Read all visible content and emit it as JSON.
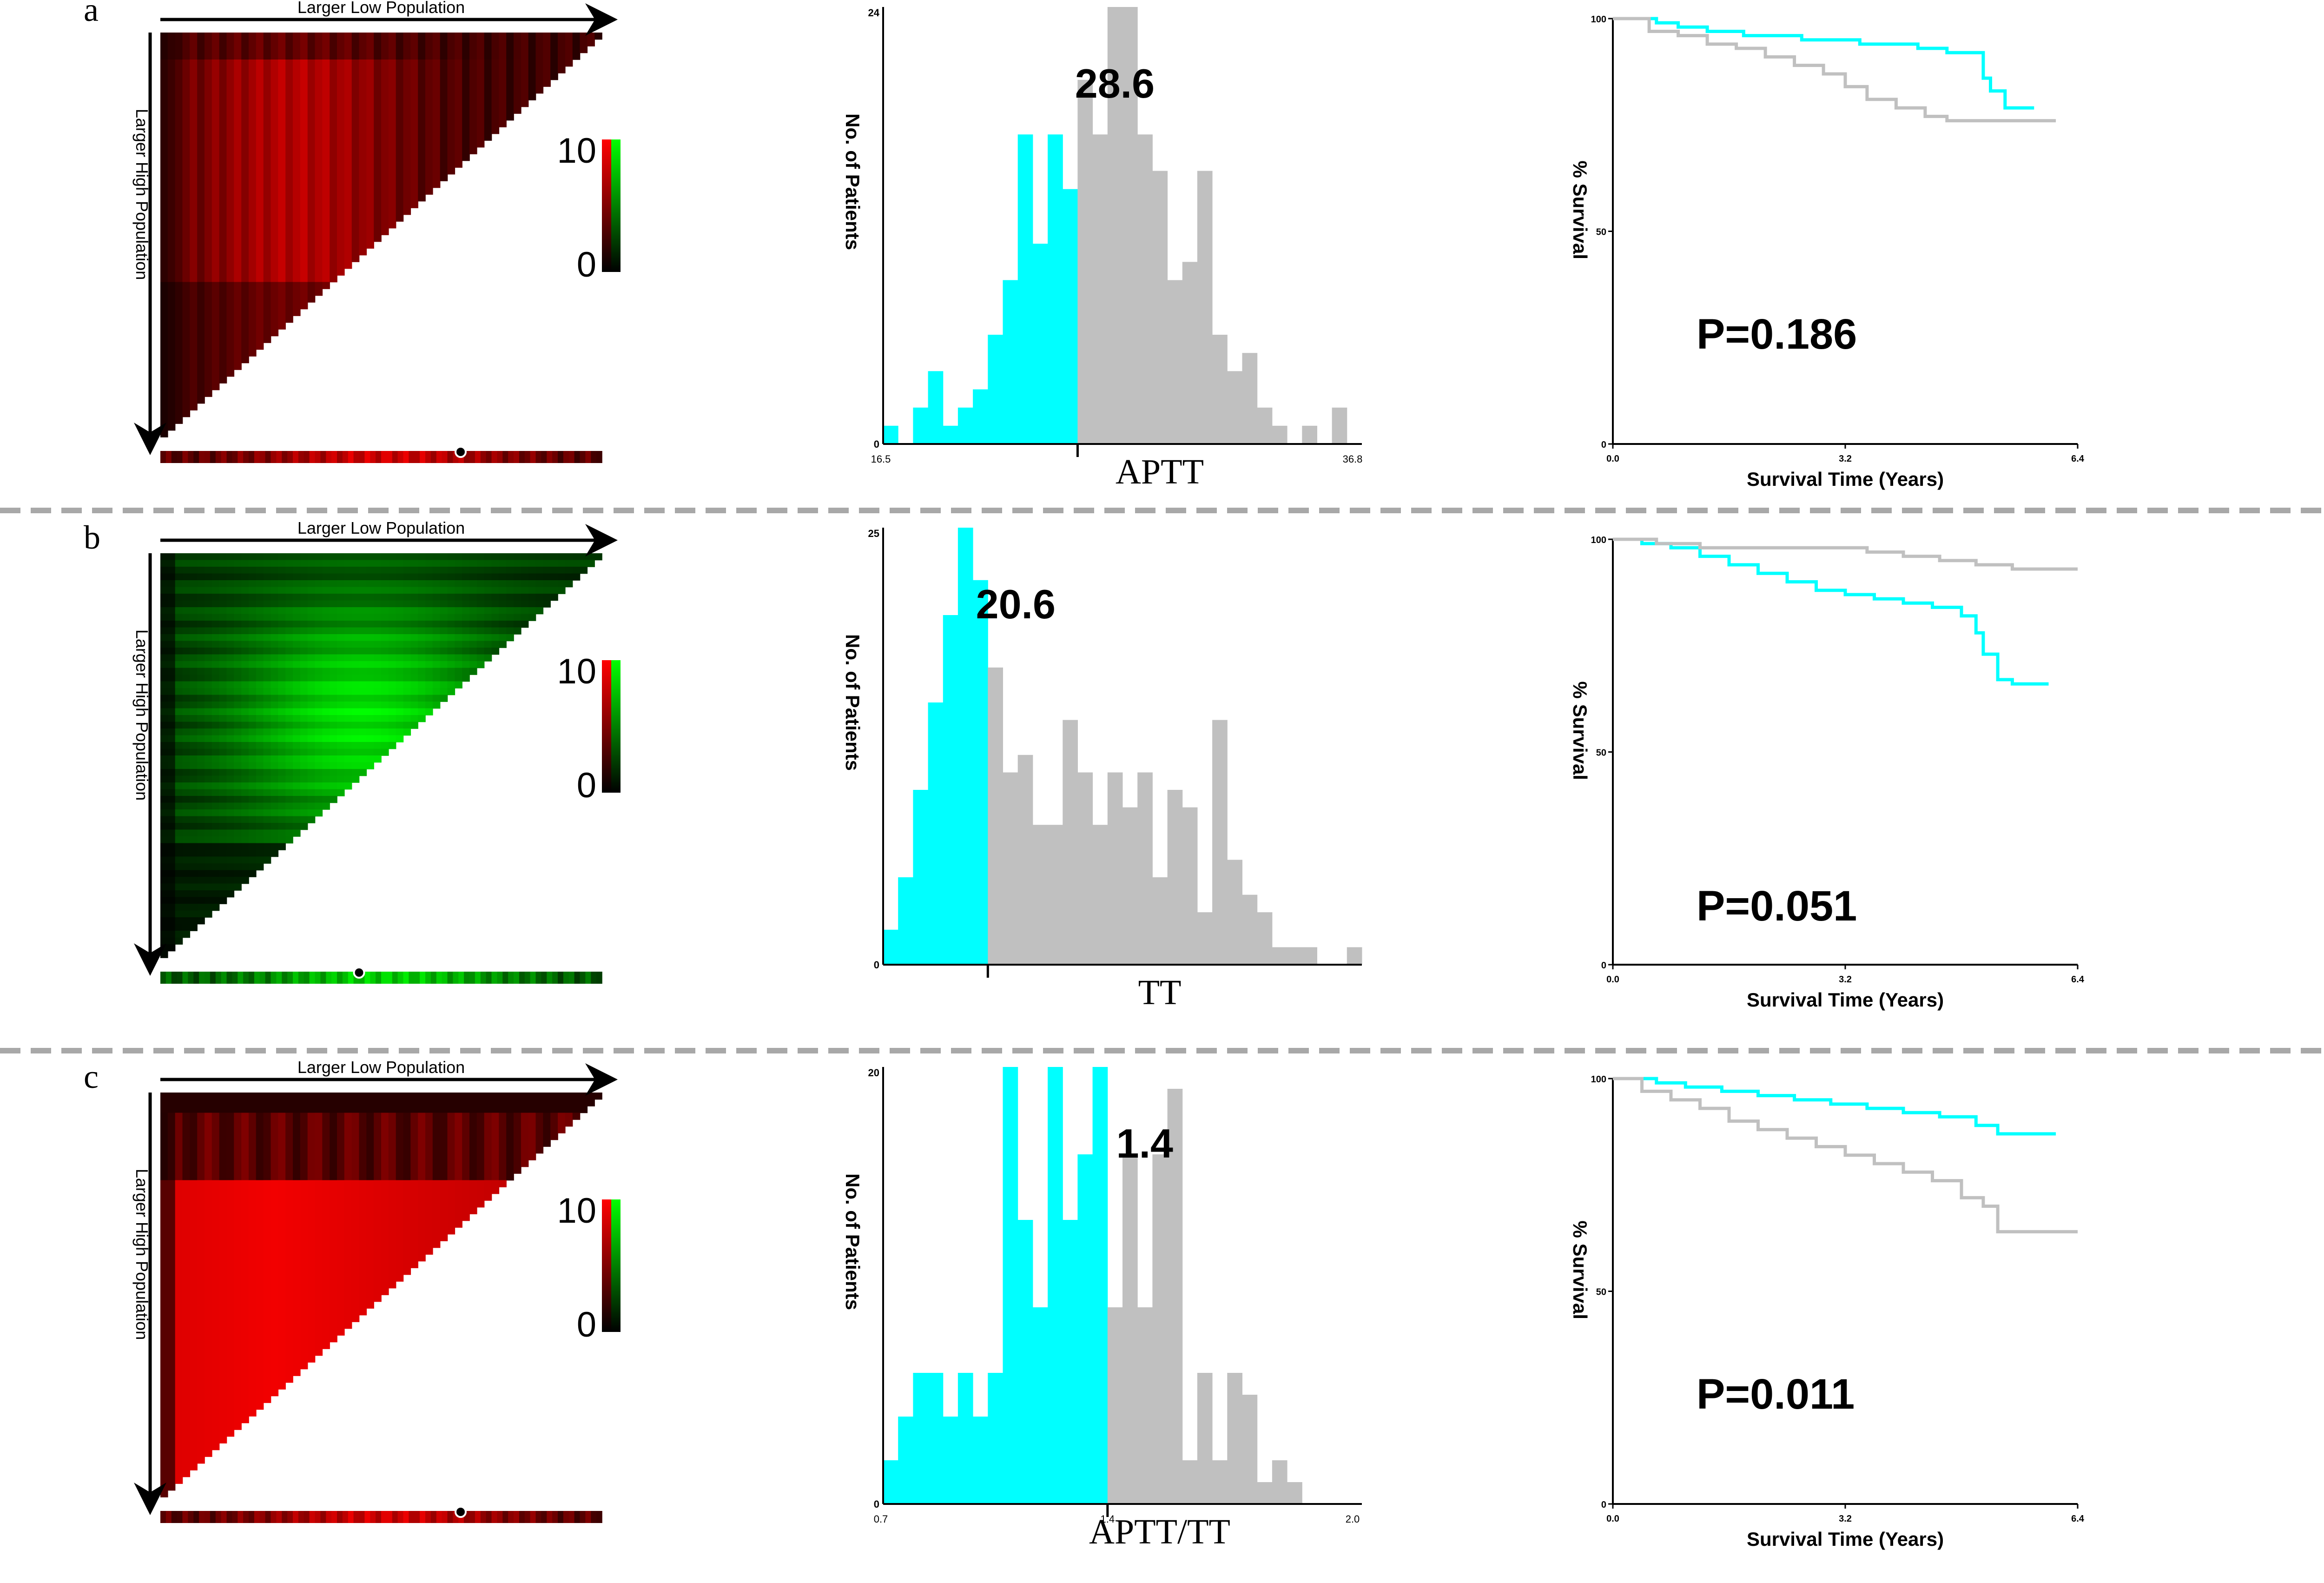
{
  "colors": {
    "cyan": "#00ffff",
    "gray": "#c0c0c0",
    "red": "#ff0000",
    "green": "#00ff00",
    "black": "#000000",
    "divider": "#a8a8a8"
  },
  "rows": [
    {
      "letter": "a",
      "heatmap": {
        "x_arrow_label": "Larger Low Population",
        "y_arrow_label": "Larger High Population",
        "scale_max_label": "10",
        "scale_min_label": "0",
        "dominant_color": "red"
      },
      "histogram": {
        "type": "bar",
        "ylabel": "No. of Patients",
        "xlabel": "APTT",
        "cutoff_label": "28.6",
        "x_min_label": "16.5",
        "cutoff_tick_label": "",
        "x_max_label": "36.8",
        "y_max_label": "24",
        "y_min_label": "0",
        "ylim": [
          0,
          24
        ],
        "split_index": 13,
        "values": [
          1,
          0,
          2,
          4,
          1,
          2,
          3,
          6,
          9,
          17,
          11,
          17,
          14,
          20,
          17,
          24,
          24,
          17,
          15,
          9,
          10,
          15,
          6,
          4,
          5,
          2,
          1,
          0,
          1,
          0,
          2,
          0
        ]
      },
      "survival": {
        "type": "line",
        "ylabel": "% Survival",
        "xlabel": "Survival Time (Years)",
        "p_value": "P=0.186",
        "y_max_label": "100",
        "y_mid_label": "50",
        "y_min_label": "0",
        "x_min_label": "0.0",
        "x_mid_label": "3.2",
        "x_max_label": "6.4",
        "xlim": [
          0,
          6.4
        ],
        "ylim": [
          0,
          100
        ],
        "series": [
          {
            "color": "cyan",
            "x": [
              0,
              0.6,
              0.9,
              1.3,
              1.8,
              2.2,
              2.6,
              3.0,
              3.4,
              3.8,
              4.2,
              4.6,
              4.9,
              5.1,
              5.2,
              5.4,
              5.8
            ],
            "y": [
              100,
              99,
              98,
              97,
              96,
              96,
              95,
              95,
              94,
              94,
              93,
              92,
              92,
              86,
              83,
              79,
              79
            ]
          },
          {
            "color": "gray",
            "x": [
              0,
              0.5,
              0.9,
              1.3,
              1.7,
              2.1,
              2.5,
              2.9,
              3.2,
              3.5,
              3.9,
              4.3,
              4.6,
              5.0,
              6.1
            ],
            "y": [
              100,
              97,
              96,
              94,
              93,
              91,
              89,
              87,
              84,
              81,
              79,
              77,
              76,
              76,
              76
            ]
          }
        ]
      }
    },
    {
      "letter": "b",
      "heatmap": {
        "x_arrow_label": "Larger Low Population",
        "y_arrow_label": "Larger High Population",
        "scale_max_label": "10",
        "scale_min_label": "0",
        "dominant_color": "green"
      },
      "histogram": {
        "type": "bar",
        "ylabel": "No. of Patients",
        "xlabel": "TT",
        "cutoff_label": "20.6",
        "x_min_label": "",
        "cutoff_tick_label": "",
        "x_max_label": "",
        "y_max_label": "25",
        "y_min_label": "0",
        "ylim": [
          0,
          25
        ],
        "split_index": 7,
        "values": [
          2,
          5,
          10,
          15,
          20,
          25,
          22,
          17,
          11,
          12,
          8,
          8,
          14,
          11,
          8,
          11,
          9,
          11,
          5,
          10,
          9,
          3,
          14,
          6,
          4,
          3,
          1,
          1,
          1,
          0,
          0,
          1
        ]
      },
      "survival": {
        "type": "line",
        "ylabel": "% Survival",
        "xlabel": "Survival Time (Years)",
        "p_value": "P=0.051",
        "y_max_label": "100",
        "y_mid_label": "50",
        "y_min_label": "0",
        "x_min_label": "0.0",
        "x_mid_label": "3.2",
        "x_max_label": "6.4",
        "xlim": [
          0,
          6.4
        ],
        "ylim": [
          0,
          100
        ],
        "series": [
          {
            "color": "cyan",
            "x": [
              0,
              0.4,
              0.8,
              1.2,
              1.6,
              2.0,
              2.4,
              2.8,
              3.2,
              3.6,
              4.0,
              4.4,
              4.8,
              5.0,
              5.1,
              5.3,
              5.5,
              6.0
            ],
            "y": [
              100,
              99,
              98,
              96,
              94,
              92,
              90,
              88,
              87,
              86,
              85,
              84,
              82,
              78,
              73,
              67,
              66,
              66
            ]
          },
          {
            "color": "gray",
            "x": [
              0,
              0.6,
              1.2,
              2.0,
              2.8,
              3.5,
              4.0,
              4.5,
              5.0,
              5.5,
              6.4
            ],
            "y": [
              100,
              99,
              98,
              98,
              98,
              97,
              96,
              95,
              94,
              93,
              93
            ]
          }
        ]
      }
    },
    {
      "letter": "c",
      "heatmap": {
        "x_arrow_label": "Larger Low Population",
        "y_arrow_label": "Larger High Population",
        "scale_max_label": "10",
        "scale_min_label": "0",
        "dominant_color": "red"
      },
      "histogram": {
        "type": "bar",
        "ylabel": "No. of Patients",
        "xlabel": "APTT/TT",
        "cutoff_label": "1.4",
        "x_min_label": "0.7",
        "cutoff_tick_label": "1.4",
        "x_max_label": "2.0",
        "y_max_label": "20",
        "y_min_label": "0",
        "ylim": [
          0,
          20
        ],
        "split_index": 15,
        "values": [
          2,
          4,
          6,
          6,
          4,
          6,
          4,
          6,
          20,
          13,
          9,
          20,
          13,
          16,
          20,
          9,
          16,
          9,
          16,
          19,
          2,
          6,
          2,
          6,
          5,
          1,
          2,
          1,
          0,
          0,
          0,
          0
        ]
      },
      "survival": {
        "type": "line",
        "ylabel": "% Survival",
        "xlabel": "Survival Time (Years)",
        "p_value": "P=0.011",
        "y_max_label": "100",
        "y_mid_label": "50",
        "y_min_label": "0",
        "x_min_label": "0.0",
        "x_mid_label": "3.2",
        "x_max_label": "6.4",
        "xlim": [
          0,
          6.4
        ],
        "ylim": [
          0,
          100
        ],
        "series": [
          {
            "color": "cyan",
            "x": [
              0,
              0.6,
              1.0,
              1.5,
              2.0,
              2.5,
              3.0,
              3.5,
              4.0,
              4.5,
              5.0,
              5.3,
              6.1
            ],
            "y": [
              100,
              99,
              98,
              97,
              96,
              95,
              94,
              93,
              92,
              91,
              89,
              87,
              87
            ]
          },
          {
            "color": "gray",
            "x": [
              0,
              0.4,
              0.8,
              1.2,
              1.6,
              2.0,
              2.4,
              2.8,
              3.2,
              3.6,
              4.0,
              4.4,
              4.8,
              5.1,
              5.3,
              6.4
            ],
            "y": [
              100,
              97,
              95,
              93,
              90,
              88,
              86,
              84,
              82,
              80,
              78,
              76,
              72,
              70,
              64,
              64
            ]
          }
        ]
      }
    }
  ]
}
